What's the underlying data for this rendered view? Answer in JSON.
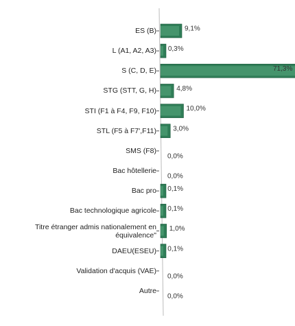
{
  "chart_data": {
    "type": "barh",
    "color": "#2f7d57",
    "categories": [
      "ES (B)",
      "L (A1, A2, A3)",
      "S (C, D, E)",
      "STG (STT, G, H)",
      "STI (F1 à F4, F9, F10)",
      "STL (F5 à F7',F11)",
      "SMS (F8)",
      "Bac hôtellerie",
      "Bac pro",
      "Bac technologique agricole",
      "Titre étranger admis nationalement en équivalence\"",
      "DAEU(ESEU)",
      "Validation d'acquis (VAE)",
      "Autre"
    ],
    "values": [
      9.1,
      0.3,
      71.3,
      4.8,
      10.0,
      3.0,
      0.0,
      0.0,
      0.1,
      0.1,
      1.0,
      0.1,
      0.0,
      0.0
    ],
    "value_labels": [
      "9,1%",
      "0,3%",
      "71,3%",
      "4,8%",
      "10,0%",
      "3,0%",
      "0,0%",
      "0,0%",
      "0,1%",
      "0,1%",
      "1,0%",
      "0,1%",
      "0,0%",
      "0,0%"
    ]
  }
}
